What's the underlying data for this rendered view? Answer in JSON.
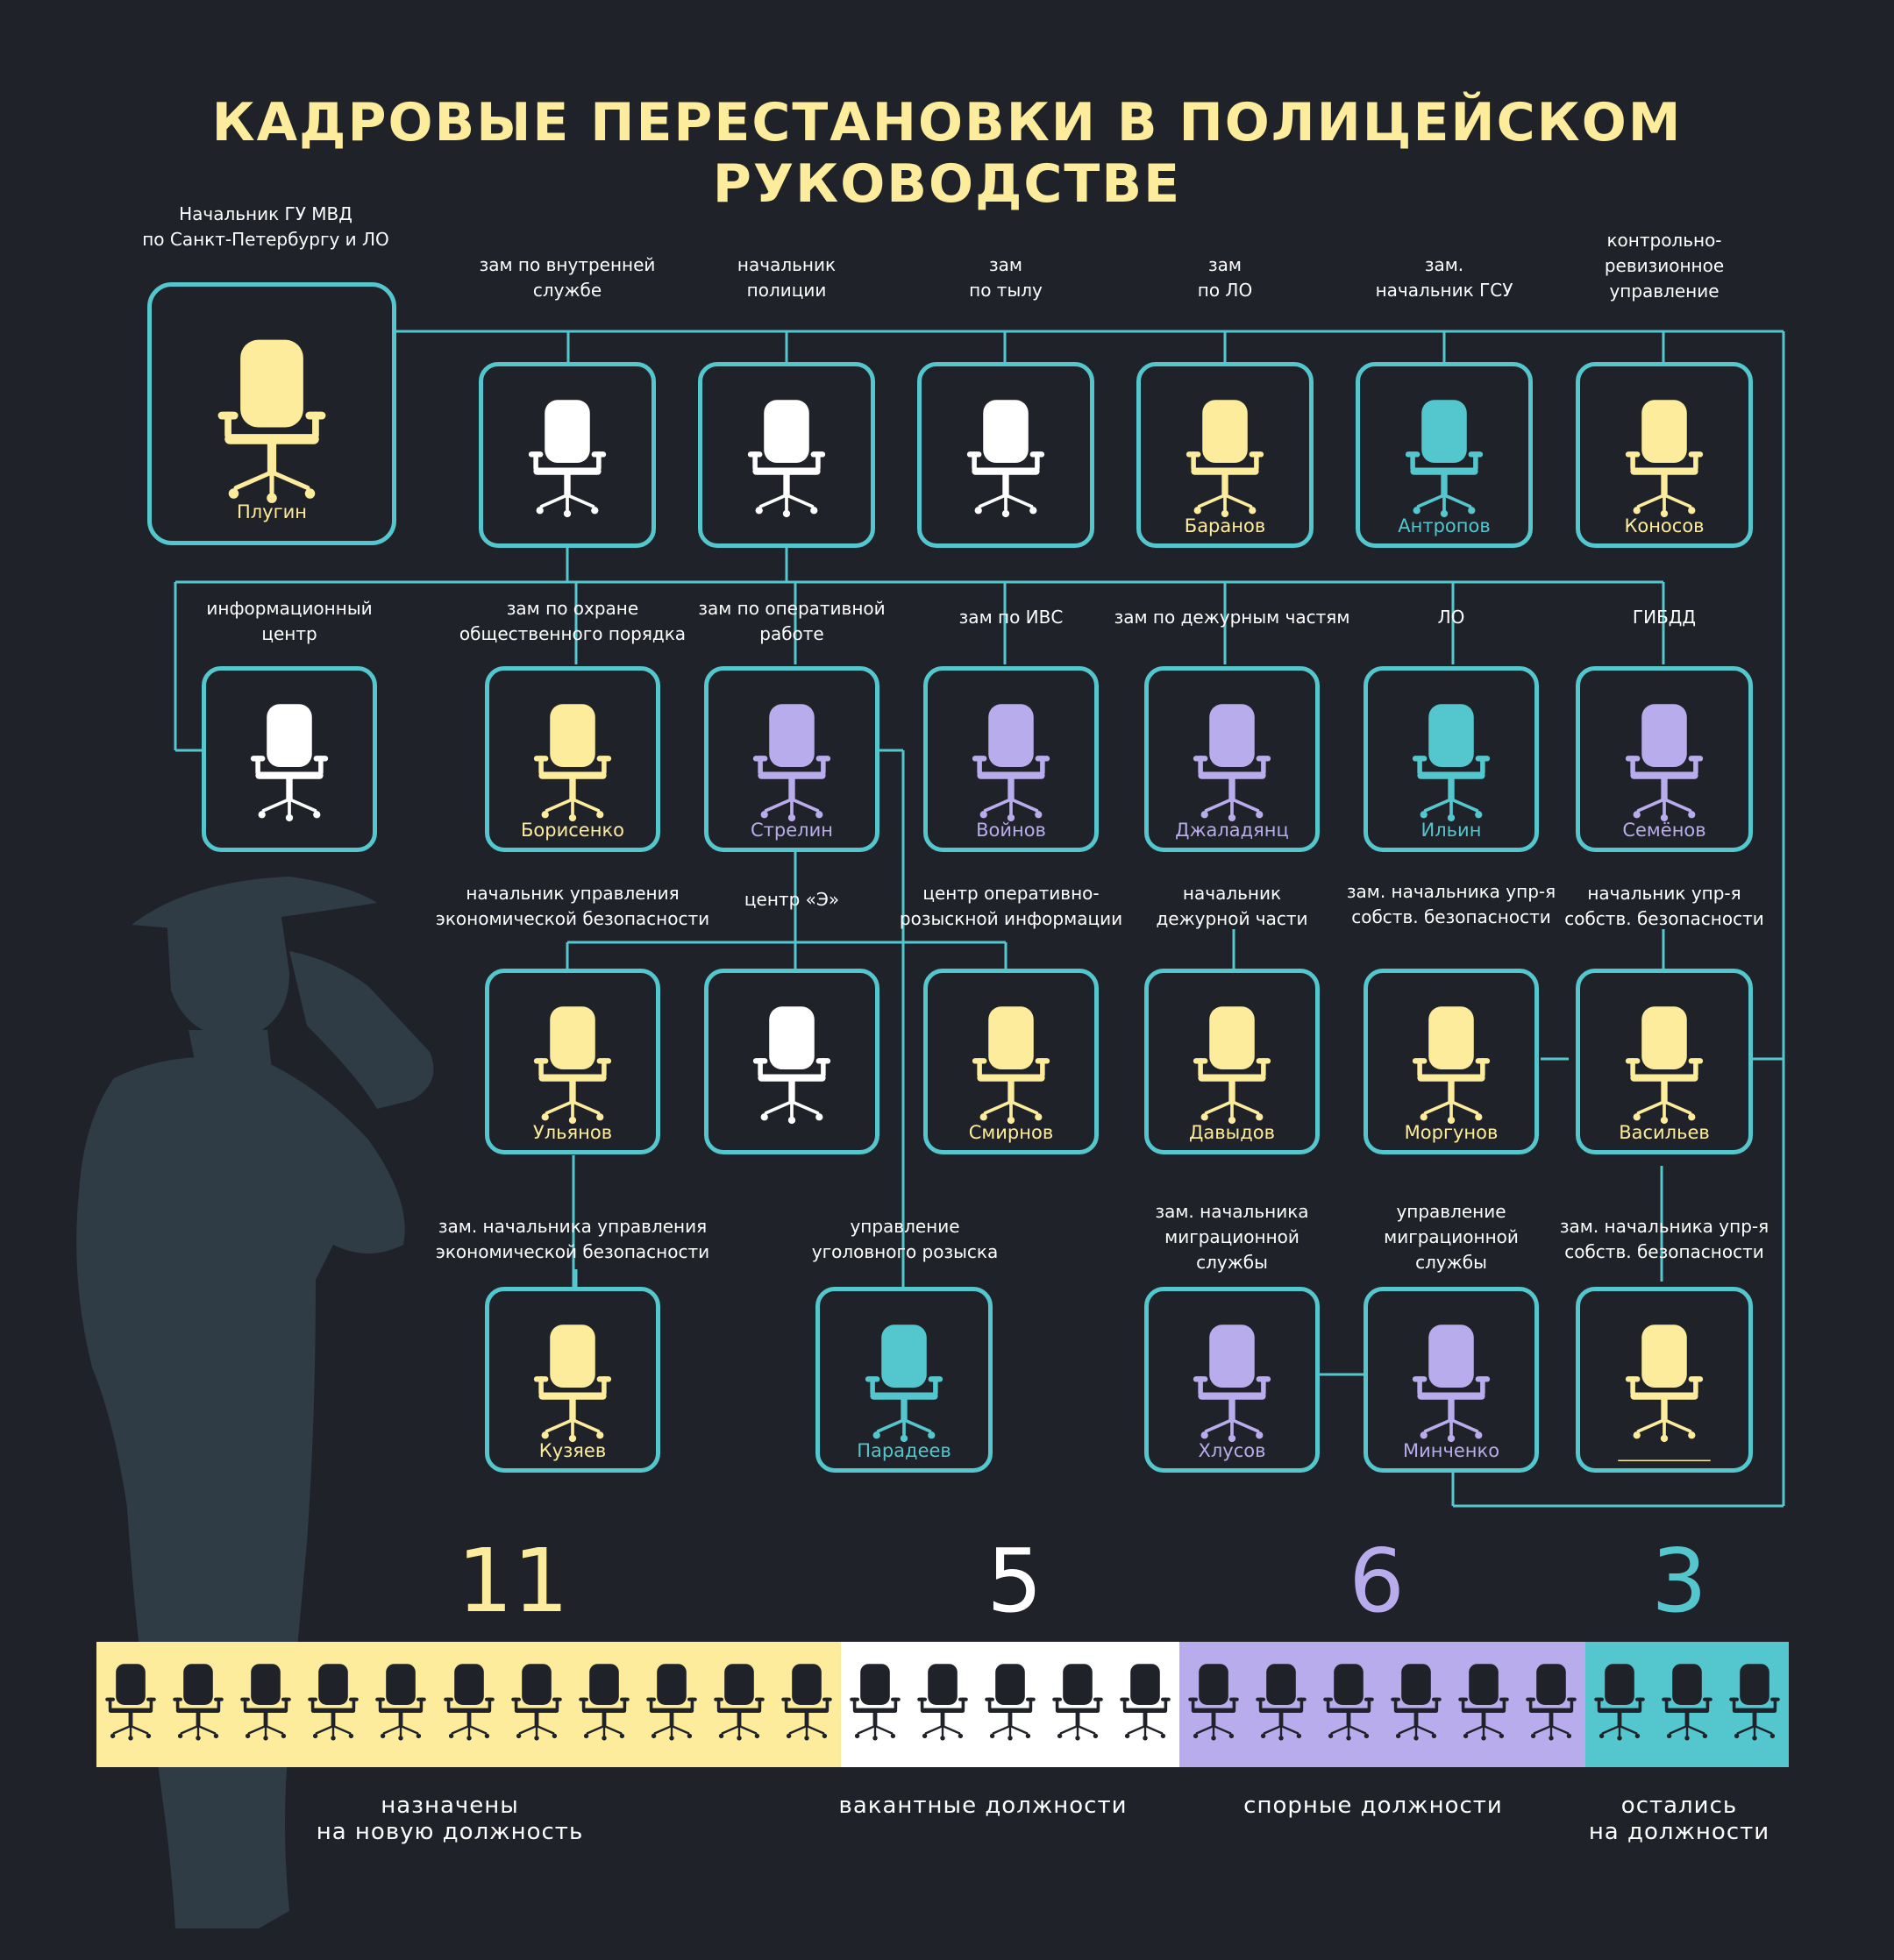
{
  "title": "КАДРОВЫЕ ПЕРЕСТАНОВКИ В ПОЛИЦЕЙСКОМ РУКОВОДСТВЕ",
  "colors": {
    "background": "#202229",
    "frame": "#53c6ce",
    "appointed": "#fcec9c",
    "vacant": "#ffffff",
    "disputed": "#b8acec",
    "remained": "#53c6ce"
  },
  "positions": [
    {
      "id": "chief",
      "label": "Начальник ГУ МВД\nпо Санкт-Петербургу и ЛО",
      "name": "Плугин",
      "status": "appointed"
    },
    {
      "id": "internal",
      "label": "зам по внутренней\nслужбе",
      "name": "",
      "status": "vacant"
    },
    {
      "id": "police",
      "label": "начальник\nполиции",
      "name": "",
      "status": "vacant"
    },
    {
      "id": "rear",
      "label": "зам\nпо тылу",
      "name": "",
      "status": "vacant"
    },
    {
      "id": "lo-deputy",
      "label": "зам\nпо ЛО",
      "name": "Баранов",
      "status": "appointed"
    },
    {
      "id": "gsu",
      "label": "зам.\nначальник  ГСУ",
      "name": "Антропов",
      "status": "remained"
    },
    {
      "id": "audit",
      "label": "контрольно-\nревизионное\nуправление",
      "name": "Коносов",
      "status": "appointed"
    },
    {
      "id": "info",
      "label": "информационный\nцентр",
      "name": "",
      "status": "vacant"
    },
    {
      "id": "order",
      "label": "зам по охране\nобщественного порядка",
      "name": "Борисенко",
      "status": "appointed"
    },
    {
      "id": "operative",
      "label": "зам по оперативной\nработе",
      "name": "Стрелин",
      "status": "disputed"
    },
    {
      "id": "ivs",
      "label": "зам по ИВС",
      "name": "Войнов",
      "status": "disputed"
    },
    {
      "id": "duty",
      "label": "зам по дежурным частям",
      "name": "Джаладянц",
      "status": "disputed"
    },
    {
      "id": "lo",
      "label": "ЛО",
      "name": "Ильин",
      "status": "remained"
    },
    {
      "id": "gibdd",
      "label": "ГИБДД",
      "name": "Семёнов",
      "status": "disputed"
    },
    {
      "id": "econ",
      "label": "начальник управления\nэкономической безопасности",
      "name": "Ульянов",
      "status": "appointed"
    },
    {
      "id": "center-e",
      "label": "центр «Э»",
      "name": "",
      "status": "vacant"
    },
    {
      "id": "info-center",
      "label": "центр оперативно-\nрозыскной информации",
      "name": "Смирнов",
      "status": "appointed"
    },
    {
      "id": "duty-chief",
      "label": "начальник\nдежурной части",
      "name": "Давыдов",
      "status": "appointed"
    },
    {
      "id": "own-sec-deputy",
      "label": "зам. начальника упр-я\nсобств. безопасности",
      "name": "Моргунов",
      "status": "appointed"
    },
    {
      "id": "own-sec-chief",
      "label": "начальник упр-я\nсобств. безопасности",
      "name": "Васильев",
      "status": "appointed"
    },
    {
      "id": "econ-deputy",
      "label": "зам. начальника управления\nэкономической безопасности",
      "name": "Кузяев",
      "status": "appointed"
    },
    {
      "id": "criminal",
      "label": "управление\nуголовного розыска",
      "name": "Парадеев",
      "status": "remained"
    },
    {
      "id": "migr-deputy",
      "label": "зам. начальника\nмиграционной\nслужбы",
      "name": "Хлусов",
      "status": "disputed"
    },
    {
      "id": "migr",
      "label": "управление\nмиграционной\nслужбы",
      "name": "Минченко",
      "status": "disputed"
    },
    {
      "id": "own-sec-deputy-2",
      "label": "зам. начальника упр-я\nсобств. безопасности",
      "name": "__________",
      "status": "appointed"
    }
  ],
  "summary": [
    {
      "key": "appointed",
      "count": "11",
      "value": 11,
      "label": "назначены\nна новую должность"
    },
    {
      "key": "vacant",
      "count": "5",
      "value": 5,
      "label": "вакантные должности"
    },
    {
      "key": "disputed",
      "count": "6",
      "value": 6,
      "label": "спорные должности"
    },
    {
      "key": "remained",
      "count": "3",
      "value": 3,
      "label": "остались\nна должности"
    }
  ]
}
